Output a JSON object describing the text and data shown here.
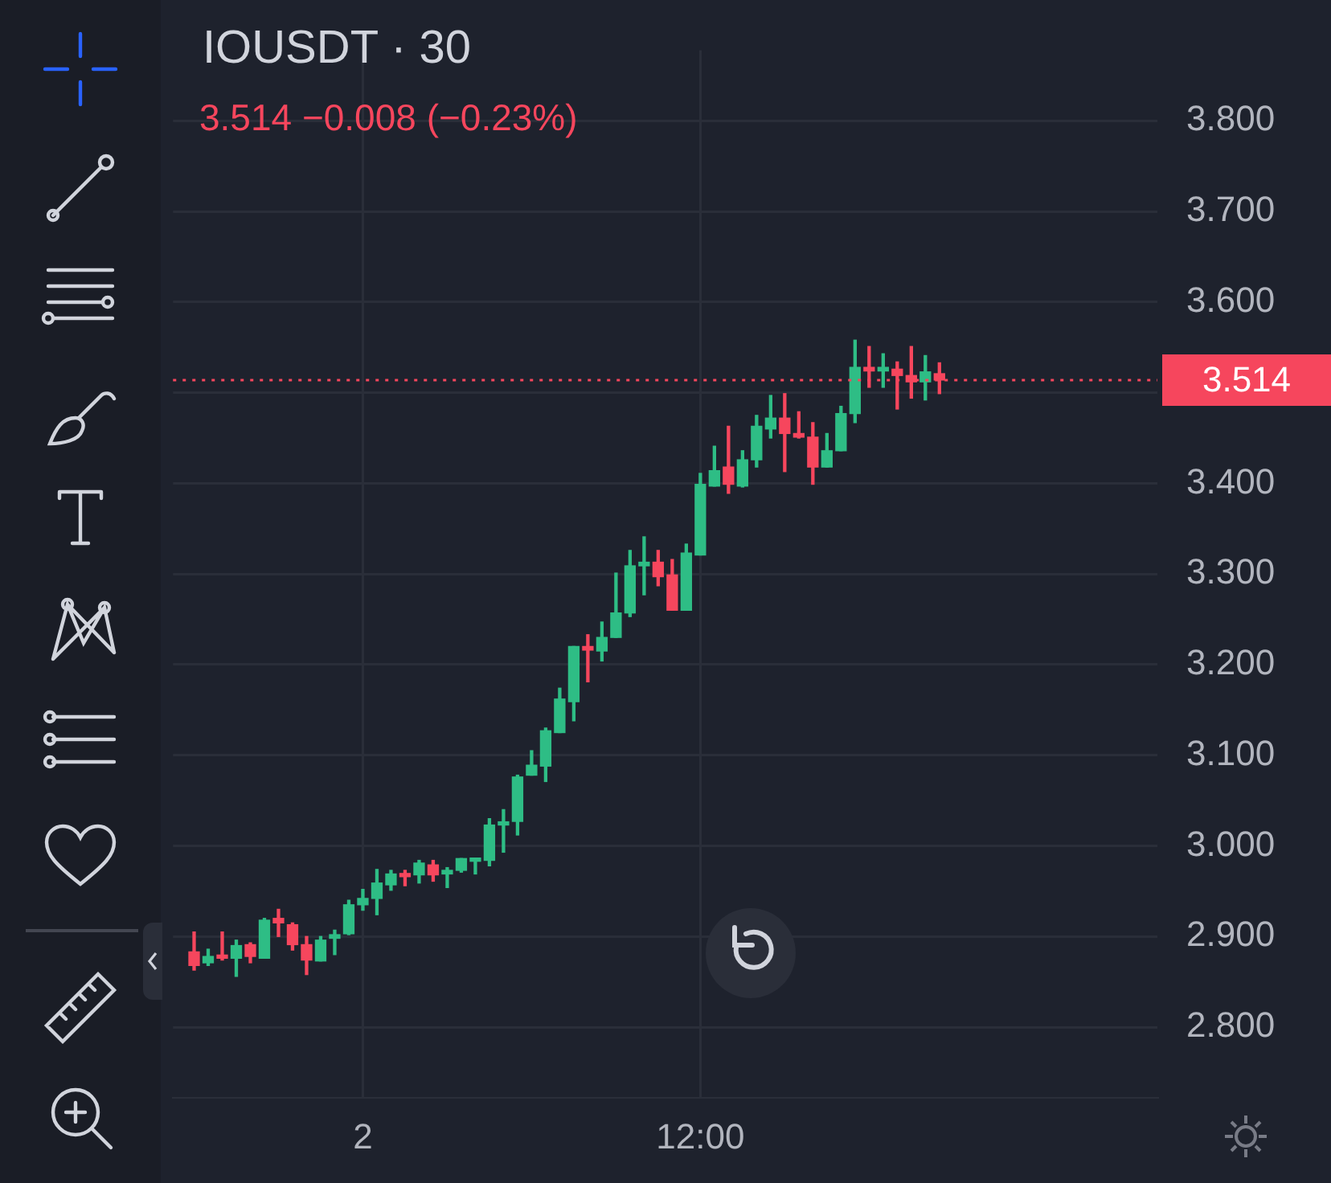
{
  "chart_data": {
    "type": "candlestick",
    "title": "IOUSDT · 30",
    "subtitle": "3.514 −0.008 (−0.23%)",
    "categories": [
      null,
      null,
      null,
      null,
      null,
      null,
      null,
      null,
      null,
      null,
      null,
      null,
      null,
      "2",
      null,
      null,
      null,
      null,
      null,
      null,
      null,
      null,
      null,
      null,
      null,
      null,
      null,
      null,
      null,
      null,
      null,
      null,
      null,
      null,
      null,
      null,
      null,
      "12:00",
      null,
      null,
      null,
      null,
      null,
      null,
      null,
      null,
      null,
      null,
      null,
      null,
      null,
      null,
      null,
      null,
      null,
      null,
      null,
      null,
      null,
      null,
      null,
      null,
      null,
      null,
      null,
      null,
      null,
      null,
      null,
      null
    ],
    "ohlc": [
      null,
      [
        2.883,
        2.905,
        2.863,
        2.868
      ],
      [
        2.871,
        2.886,
        2.868,
        2.878
      ],
      [
        2.878,
        2.905,
        2.874,
        2.876
      ],
      [
        2.876,
        2.896,
        2.856,
        2.89
      ],
      [
        2.891,
        2.893,
        2.871,
        2.878
      ],
      [
        2.876,
        2.92,
        2.876,
        2.918
      ],
      [
        2.92,
        2.93,
        2.9,
        2.915
      ],
      [
        2.913,
        2.915,
        2.885,
        2.891
      ],
      [
        2.891,
        2.9,
        2.858,
        2.874
      ],
      [
        2.873,
        2.9,
        2.873,
        2.896
      ],
      [
        2.898,
        2.907,
        2.88,
        2.902
      ],
      [
        2.903,
        2.94,
        2.902,
        2.935
      ],
      [
        2.935,
        2.952,
        2.929,
        2.942
      ],
      [
        2.942,
        2.974,
        2.924,
        2.959
      ],
      [
        2.957,
        2.973,
        2.951,
        2.969
      ],
      [
        2.969,
        2.973,
        2.956,
        2.966
      ],
      [
        2.968,
        2.984,
        2.959,
        2.981
      ],
      [
        2.979,
        2.984,
        2.961,
        2.968
      ],
      [
        2.969,
        2.976,
        2.954,
        2.973
      ],
      [
        2.973,
        2.986,
        2.971,
        2.986
      ],
      [
        2.983,
        2.986,
        2.969,
        2.986
      ],
      [
        2.984,
        3.03,
        2.978,
        3.023
      ],
      [
        3.023,
        3.04,
        2.993,
        3.025
      ],
      [
        3.027,
        3.078,
        3.012,
        3.076
      ],
      [
        3.078,
        3.105,
        3.078,
        3.089
      ],
      [
        3.088,
        3.13,
        3.071,
        3.127
      ],
      [
        3.125,
        3.174,
        3.125,
        3.162
      ],
      [
        3.159,
        3.22,
        3.138,
        3.22
      ],
      [
        3.22,
        3.233,
        3.181,
        3.216
      ],
      [
        3.215,
        3.247,
        3.204,
        3.23
      ],
      [
        3.23,
        3.301,
        3.23,
        3.257
      ],
      [
        3.257,
        3.326,
        3.253,
        3.309
      ],
      [
        3.309,
        3.341,
        3.277,
        3.313
      ],
      [
        3.313,
        3.326,
        3.287,
        3.297
      ],
      [
        3.299,
        3.316,
        3.26,
        3.26
      ],
      [
        3.26,
        3.333,
        3.26,
        3.323
      ],
      [
        3.321,
        3.411,
        3.321,
        3.399
      ],
      [
        3.397,
        3.441,
        3.397,
        3.414
      ],
      [
        3.418,
        3.463,
        3.389,
        3.399
      ],
      [
        3.397,
        3.436,
        3.396,
        3.426
      ],
      [
        3.426,
        3.475,
        3.418,
        3.463
      ],
      [
        3.46,
        3.497,
        3.45,
        3.472
      ],
      [
        3.472,
        3.499,
        3.413,
        3.455
      ],
      [
        3.455,
        3.479,
        3.45,
        3.451
      ],
      [
        3.451,
        3.467,
        3.399,
        3.418
      ],
      [
        3.418,
        3.455,
        3.418,
        3.436
      ],
      [
        3.436,
        3.485,
        3.436,
        3.477
      ],
      [
        3.477,
        3.558,
        3.467,
        3.528
      ],
      [
        3.528,
        3.551,
        3.506,
        3.524
      ],
      [
        3.524,
        3.543,
        3.506,
        3.528
      ],
      [
        3.526,
        3.534,
        3.482,
        3.519
      ],
      [
        3.519,
        3.551,
        3.494,
        3.512
      ],
      [
        3.512,
        3.541,
        3.492,
        3.523
      ],
      [
        3.521,
        3.533,
        3.499,
        3.514
      ],
      null,
      null,
      null,
      null,
      null,
      null,
      null,
      null,
      null,
      null,
      null,
      null,
      null,
      null,
      null
    ],
    "colors": [
      null,
      "#f6465d",
      "#2ebd85",
      "#f6465d",
      "#2ebd85",
      "#f6465d",
      "#2ebd85",
      "#f6465d",
      "#f6465d",
      "#f6465d",
      "#2ebd85",
      "#2ebd85",
      "#2ebd85",
      "#2ebd85",
      "#2ebd85",
      "#2ebd85",
      "#f6465d",
      "#2ebd85",
      "#f6465d",
      "#2ebd85",
      "#2ebd85",
      "#2ebd85",
      "#2ebd85",
      "#2ebd85",
      "#2ebd85",
      "#2ebd85",
      "#2ebd85",
      "#2ebd85",
      "#2ebd85",
      "#f6465d",
      "#2ebd85",
      "#2ebd85",
      "#2ebd85",
      "#2ebd85",
      "#f6465d",
      "#f6465d",
      "#2ebd85",
      "#2ebd85",
      "#2ebd85",
      "#f6465d",
      "#2ebd85",
      "#2ebd85",
      "#2ebd85",
      "#f6465d",
      "#f6465d",
      "#f6465d",
      "#2ebd85",
      "#2ebd85",
      "#2ebd85",
      "#f6465d",
      "#2ebd85",
      "#f6465d",
      "#f6465d",
      "#2ebd85",
      "#f6465d",
      null,
      null,
      null,
      null,
      null,
      null,
      null,
      null,
      null,
      null,
      null,
      null,
      null,
      null,
      null
    ],
    "ylim": [
      2.722,
      3.878
    ],
    "yticks": [
      {
        "value": 2.8,
        "label": "2.800"
      },
      {
        "value": 2.9,
        "label": "2.900"
      },
      {
        "value": 3.0,
        "label": "3.000"
      },
      {
        "value": 3.1,
        "label": "3.100"
      },
      {
        "value": 3.2,
        "label": "3.200"
      },
      {
        "value": 3.3,
        "label": "3.300"
      },
      {
        "value": 3.4,
        "label": "3.400"
      },
      {
        "value": 3.5,
        "label": null
      },
      {
        "value": 3.6,
        "label": "3.600"
      },
      {
        "value": 3.7,
        "label": "3.700"
      },
      {
        "value": 3.8,
        "label": "3.800"
      }
    ],
    "ref_lines": [
      {
        "axis": "y",
        "value": 3.514,
        "label": "3.514",
        "color": "#f6465d",
        "line_style": "dotted"
      }
    ],
    "grid": true
  }
}
